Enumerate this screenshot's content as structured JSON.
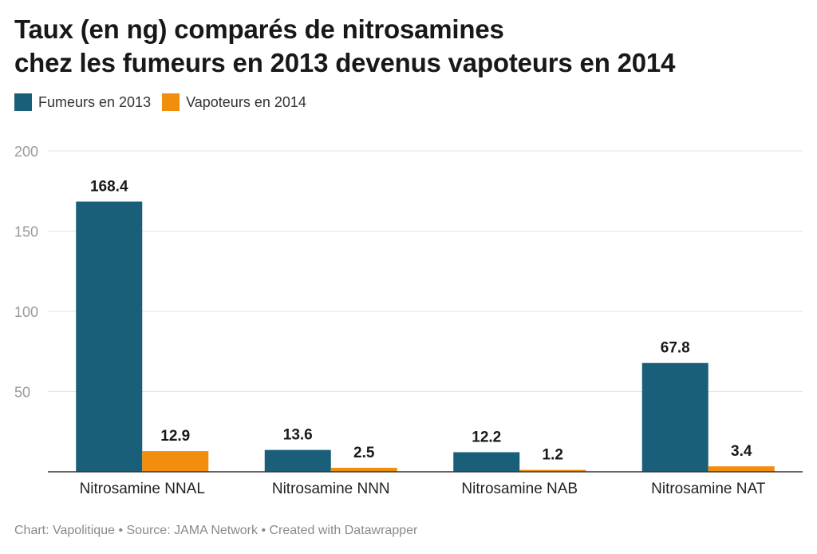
{
  "title_lines": [
    "Taux (en ng) comparés de nitrosamines",
    "chez les fumeurs en 2013 devenus vapoteurs en 2014"
  ],
  "legend": [
    {
      "label": "Fumeurs en 2013",
      "color": "#1a5f7a"
    },
    {
      "label": "Vapoteurs en 2014",
      "color": "#f28e0d"
    }
  ],
  "footer": "Chart: Vapolitique • Source: JAMA Network • Created with Datawrapper",
  "chart_data": {
    "type": "bar",
    "title": "Taux (en ng) comparés de nitrosamines chez les fumeurs en 2013 devenus vapoteurs en 2014",
    "categories": [
      "Nitrosamine NNAL",
      "Nitrosamine NNN",
      "Nitrosamine NAB",
      "Nitrosamine NAT"
    ],
    "series": [
      {
        "name": "Fumeurs en 2013",
        "values": [
          168.4,
          13.6,
          12.2,
          67.8
        ],
        "color": "#1a5f7a"
      },
      {
        "name": "Vapoteurs en 2014",
        "values": [
          12.9,
          2.5,
          1.2,
          3.4
        ],
        "color": "#f28e0d"
      }
    ],
    "ylim": [
      0,
      200
    ],
    "yticks": [
      50,
      100,
      150,
      200
    ],
    "grid": true,
    "legend_position": "top-left"
  }
}
